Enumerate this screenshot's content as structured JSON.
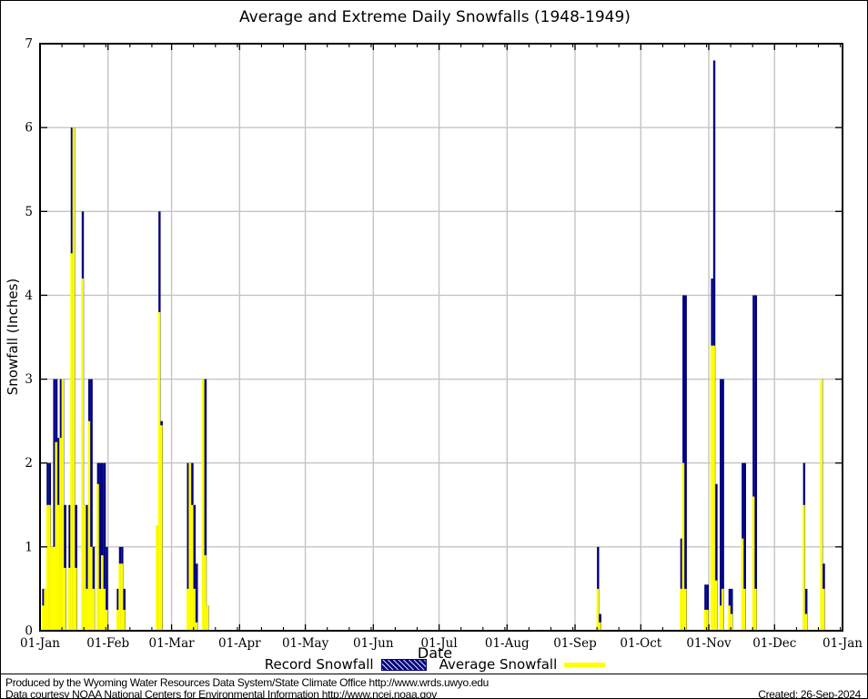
{
  "title": "Average and Extreme Daily Snowfalls (1948-1949)",
  "x_axis": {
    "label": "Date",
    "tick_labels": [
      "01-Jan",
      "01-Feb",
      "01-Mar",
      "01-Apr",
      "01-May",
      "01-Jun",
      "01-Jul",
      "01-Aug",
      "01-Sep",
      "01-Oct",
      "01-Nov",
      "01-Dec",
      "01-Jan"
    ],
    "tick_day_index": [
      0,
      31,
      60,
      91,
      121,
      152,
      182,
      213,
      244,
      274,
      305,
      335,
      366
    ]
  },
  "y_axis": {
    "label": "Snowfall (Inches)",
    "ticks": [
      "0",
      "1",
      "2",
      "3",
      "4",
      "5",
      "6",
      "7"
    ],
    "range": [
      0,
      7
    ]
  },
  "legend": {
    "record": {
      "label": "Record Snowfall",
      "color": "#000080",
      "style": "hatched-box"
    },
    "average": {
      "label": "Average Snowfall",
      "color": "#ffff00",
      "style": "solid-line"
    }
  },
  "footer": {
    "line1": "Produced by the Wyoming Water Resources Data System/State Climate Office http://www.wrds.uwyo.edu",
    "line2": "Data courtesy NOAA National Centers for Environmental Information http://www.ncei.noaa.gov",
    "created": "Created: 26-Sep-2024"
  },
  "colors": {
    "record_bar": "#000080",
    "average_bar": "#ffff00",
    "gridline": "#c4c4c4",
    "axis": "#000000",
    "background": "#ffffff"
  },
  "chart_data": {
    "type": "bar",
    "title": "Average and Extreme Daily Snowfalls (1948-1949)",
    "xlabel": "Date",
    "ylabel": "Snowfall (Inches)",
    "ylim": [
      0,
      7
    ],
    "x_unit": "day_of_year (1948, 366 days)",
    "grid": true,
    "legend_position": "bottom-center",
    "series": [
      {
        "name": "Record Snowfall",
        "color": "#000080"
      },
      {
        "name": "Average Snowfall",
        "color": "#ffff00"
      }
    ],
    "points": [
      {
        "date": "Jan 2",
        "day": 1,
        "record": 0.5,
        "average": 0.3
      },
      {
        "date": "Jan 3",
        "day": 2,
        "record": 0.5,
        "average": 0.5
      },
      {
        "date": "Jan 4",
        "day": 3,
        "record": 2.0,
        "average": 1.5
      },
      {
        "date": "Jan 5",
        "day": 4,
        "record": 2.0,
        "average": 1.5
      },
      {
        "date": "Jan 6",
        "day": 5,
        "record": 1.0,
        "average": 1.0
      },
      {
        "date": "Jan 7",
        "day": 6,
        "record": 3.0,
        "average": 1.0
      },
      {
        "date": "Jan 8",
        "day": 7,
        "record": 3.0,
        "average": 2.25
      },
      {
        "date": "Jan 9",
        "day": 8,
        "record": 2.3,
        "average": 1.5
      },
      {
        "date": "Jan 10",
        "day": 9,
        "record": 3.0,
        "average": 2.3
      },
      {
        "date": "Jan 11",
        "day": 10,
        "record": 3.0,
        "average": 3.0
      },
      {
        "date": "Jan 12",
        "day": 11,
        "record": 1.5,
        "average": 0.75
      },
      {
        "date": "Jan 14",
        "day": 13,
        "record": 1.5,
        "average": 0.75
      },
      {
        "date": "Jan 15",
        "day": 14,
        "record": 6.0,
        "average": 4.5
      },
      {
        "date": "Jan 16",
        "day": 15,
        "record": 6.0,
        "average": 6.0
      },
      {
        "date": "Jan 17",
        "day": 16,
        "record": 1.5,
        "average": 0.75
      },
      {
        "date": "Jan 20",
        "day": 19,
        "record": 5.0,
        "average": 4.2
      },
      {
        "date": "Jan 21",
        "day": 20,
        "record": 1.5,
        "average": 1.5
      },
      {
        "date": "Jan 22",
        "day": 21,
        "record": 1.5,
        "average": 0.5
      },
      {
        "date": "Jan 23",
        "day": 22,
        "record": 3.0,
        "average": 2.5
      },
      {
        "date": "Jan 24",
        "day": 23,
        "record": 3.0,
        "average": 1.0
      },
      {
        "date": "Jan 25",
        "day": 24,
        "record": 1.0,
        "average": 0.5
      },
      {
        "date": "Jan 27",
        "day": 26,
        "record": 2.0,
        "average": 1.75
      },
      {
        "date": "Jan 28",
        "day": 27,
        "record": 2.0,
        "average": 0.5
      },
      {
        "date": "Jan 29",
        "day": 28,
        "record": 2.0,
        "average": 0.9
      },
      {
        "date": "Jan 30",
        "day": 29,
        "record": 2.0,
        "average": 0.5
      },
      {
        "date": "Jan 31",
        "day": 30,
        "record": 1.0,
        "average": 0.25
      },
      {
        "date": "Feb 5",
        "day": 35,
        "record": 0.5,
        "average": 0.25
      },
      {
        "date": "Feb 6",
        "day": 36,
        "record": 1.0,
        "average": 0.8
      },
      {
        "date": "Feb 7",
        "day": 37,
        "record": 1.0,
        "average": 0.8
      },
      {
        "date": "Feb 8",
        "day": 38,
        "record": 0.5,
        "average": 0.25
      },
      {
        "date": "Feb 23",
        "day": 53,
        "record": 1.25,
        "average": 1.25
      },
      {
        "date": "Feb 24",
        "day": 54,
        "record": 5.0,
        "average": 3.8
      },
      {
        "date": "Feb 25",
        "day": 55,
        "record": 2.5,
        "average": 2.45
      },
      {
        "date": "Mar 8",
        "day": 67,
        "record": 2.0,
        "average": 0.5
      },
      {
        "date": "Mar 9",
        "day": 68,
        "record": 2.0,
        "average": 2.0
      },
      {
        "date": "Mar 10",
        "day": 69,
        "record": 2.0,
        "average": 1.5
      },
      {
        "date": "Mar 11",
        "day": 70,
        "record": 1.5,
        "average": 0.5
      },
      {
        "date": "Mar 12",
        "day": 71,
        "record": 0.8,
        "average": 0.1
      },
      {
        "date": "Mar 15",
        "day": 74,
        "record": 3.0,
        "average": 3.0
      },
      {
        "date": "Mar 16",
        "day": 75,
        "record": 3.0,
        "average": 0.9
      },
      {
        "date": "Mar 17",
        "day": 76,
        "record": 0.3,
        "average": 0.3
      },
      {
        "date": "Sep 11",
        "day": 254,
        "record": 1.0,
        "average": 0.5
      },
      {
        "date": "Sep 12",
        "day": 255,
        "record": 0.2,
        "average": 0.1
      },
      {
        "date": "Oct 19",
        "day": 292,
        "record": 1.1,
        "average": 0.5
      },
      {
        "date": "Oct 20",
        "day": 293,
        "record": 4.0,
        "average": 2.0
      },
      {
        "date": "Oct 21",
        "day": 294,
        "record": 4.0,
        "average": 0.5
      },
      {
        "date": "Oct 30",
        "day": 303,
        "record": 0.55,
        "average": 0.25
      },
      {
        "date": "Oct 31",
        "day": 304,
        "record": 0.55,
        "average": 0.25
      },
      {
        "date": "Nov 2",
        "day": 306,
        "record": 4.2,
        "average": 3.4
      },
      {
        "date": "Nov 3",
        "day": 307,
        "record": 6.8,
        "average": 3.4
      },
      {
        "date": "Nov 4",
        "day": 308,
        "record": 1.75,
        "average": 0.6
      },
      {
        "date": "Nov 6",
        "day": 310,
        "record": 3.0,
        "average": 0.3
      },
      {
        "date": "Nov 7",
        "day": 311,
        "record": 3.0,
        "average": 0.5
      },
      {
        "date": "Nov 10",
        "day": 314,
        "record": 0.5,
        "average": 0.3
      },
      {
        "date": "Nov 11",
        "day": 315,
        "record": 0.5,
        "average": 0.2
      },
      {
        "date": "Nov 16",
        "day": 320,
        "record": 2.0,
        "average": 1.1
      },
      {
        "date": "Nov 17",
        "day": 321,
        "record": 2.0,
        "average": 0.5
      },
      {
        "date": "Nov 21",
        "day": 325,
        "record": 4.0,
        "average": 1.6
      },
      {
        "date": "Nov 22",
        "day": 326,
        "record": 4.0,
        "average": 0.5
      },
      {
        "date": "Dec 14",
        "day": 348,
        "record": 2.0,
        "average": 1.5
      },
      {
        "date": "Dec 15",
        "day": 349,
        "record": 0.5,
        "average": 0.2
      },
      {
        "date": "Dec 22",
        "day": 356,
        "record": 3.0,
        "average": 3.0
      },
      {
        "date": "Dec 23",
        "day": 357,
        "record": 0.8,
        "average": 0.5
      }
    ]
  }
}
